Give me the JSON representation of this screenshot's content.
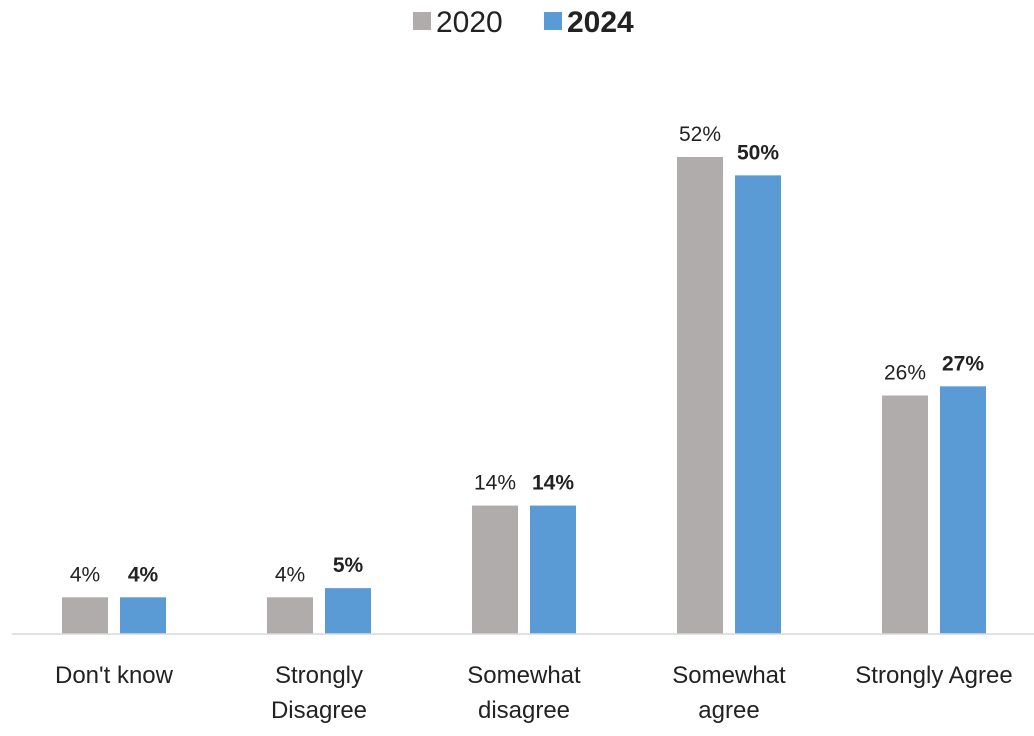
{
  "chart_data": {
    "type": "bar",
    "title": "",
    "xlabel": "",
    "ylabel": "",
    "categories": [
      [
        "Don't know"
      ],
      [
        "Strongly",
        "Disagree"
      ],
      [
        "Somewhat",
        "disagree"
      ],
      [
        "Somewhat",
        "agree"
      ],
      [
        "Strongly Agree"
      ]
    ],
    "series": [
      {
        "name": "2020",
        "values": [
          4,
          4,
          14,
          52,
          26
        ],
        "value_labels": [
          "4%",
          "4%",
          "14%",
          "52%",
          "26%"
        ],
        "color": "#AFACAB",
        "label_bold": false
      },
      {
        "name": "2024",
        "values": [
          4,
          5,
          14,
          50,
          27
        ],
        "value_labels": [
          "4%",
          "5%",
          "14%",
          "50%",
          "27%"
        ],
        "color": "#5B9BD5",
        "label_bold": true
      }
    ],
    "ylim": [
      0,
      52
    ],
    "grid": false,
    "legend_position": "top-center",
    "axis_color": "#D9D9D9"
  }
}
